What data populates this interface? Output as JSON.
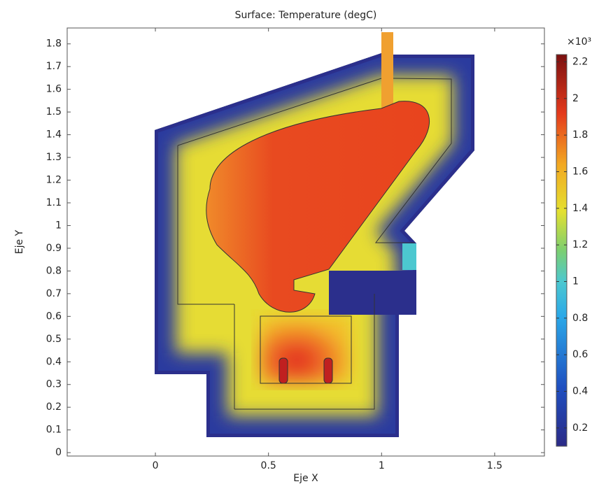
{
  "chart_data": {
    "type": "surface",
    "title": "Surface: Temperature (degC)",
    "x_label": "Eje X",
    "y_label": "Eje Y",
    "xlim": [
      -0.39,
      1.72
    ],
    "ylim": [
      -0.015,
      1.87
    ],
    "xticks": [
      0,
      0.5,
      1,
      1.5
    ],
    "yticks": [
      0,
      0.1,
      0.2,
      0.3,
      0.4,
      0.5,
      0.6,
      0.7,
      0.8,
      0.9,
      1,
      1.1,
      1.2,
      1.3,
      1.4,
      1.5,
      1.6,
      1.7,
      1.8
    ],
    "colorbar": {
      "multiplier": "×10³",
      "lim": [
        0.1,
        2.24
      ],
      "ticks": [
        0.2,
        0.4,
        0.6,
        0.8,
        1,
        1.2,
        1.4,
        1.6,
        1.8,
        2,
        2.2
      ]
    }
  }
}
